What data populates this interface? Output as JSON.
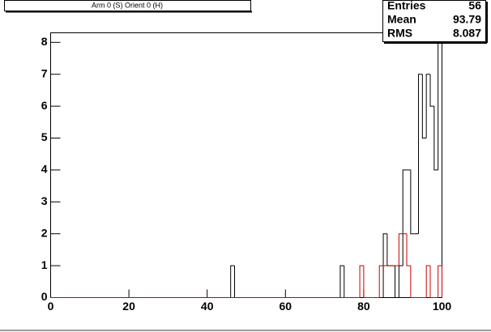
{
  "chart_data": {
    "type": "histogram",
    "title": "Arm 0 (S) Orient 0 (H)",
    "bins": [
      0,
      1,
      2,
      3,
      4,
      5,
      6,
      7,
      8,
      9,
      10,
      11,
      12,
      13,
      14,
      15,
      16,
      17,
      18,
      19,
      20,
      21,
      22,
      23,
      24,
      25,
      26,
      27,
      28,
      29,
      30,
      31,
      32,
      33,
      34,
      35,
      36,
      37,
      38,
      39,
      40,
      41,
      42,
      43,
      44,
      45,
      46,
      47,
      48,
      49,
      50,
      51,
      52,
      53,
      54,
      55,
      56,
      57,
      58,
      59,
      60,
      61,
      62,
      63,
      64,
      65,
      66,
      67,
      68,
      69,
      70,
      71,
      72,
      73,
      74,
      75,
      76,
      77,
      78,
      79,
      80,
      81,
      82,
      83,
      84,
      85,
      86,
      87,
      88,
      89,
      90,
      91,
      92,
      93,
      94,
      95,
      96,
      97,
      98,
      99,
      100
    ],
    "series": [
      {
        "color": "#000000",
        "values": [
          0,
          0,
          0,
          0,
          0,
          0,
          0,
          0,
          0,
          0,
          0,
          0,
          0,
          0,
          0,
          0,
          0,
          0,
          0,
          0,
          0,
          0,
          0,
          0,
          0,
          0,
          0,
          0,
          0,
          0,
          0,
          0,
          0,
          0,
          0,
          0,
          0,
          0,
          0,
          0,
          0,
          0,
          0,
          0,
          0,
          0,
          1,
          0,
          0,
          0,
          0,
          0,
          0,
          0,
          0,
          0,
          0,
          0,
          0,
          0,
          0,
          0,
          0,
          0,
          0,
          0,
          0,
          0,
          0,
          0,
          0,
          0,
          0,
          0,
          1,
          0,
          0,
          0,
          0,
          0,
          0,
          0,
          0,
          0,
          0,
          2,
          1,
          1,
          0,
          1,
          4,
          4,
          2,
          2,
          7,
          5,
          7,
          6,
          4,
          8
        ]
      },
      {
        "color": "#cc0000",
        "values": [
          0,
          0,
          0,
          0,
          0,
          0,
          0,
          0,
          0,
          0,
          0,
          0,
          0,
          0,
          0,
          0,
          0,
          0,
          0,
          0,
          0,
          0,
          0,
          0,
          0,
          0,
          0,
          0,
          0,
          0,
          0,
          0,
          0,
          0,
          0,
          0,
          0,
          0,
          0,
          0,
          0,
          0,
          0,
          0,
          0,
          0,
          0,
          0,
          0,
          0,
          0,
          0,
          0,
          0,
          0,
          0,
          0,
          0,
          0,
          0,
          0,
          0,
          0,
          0,
          0,
          0,
          0,
          0,
          0,
          0,
          0,
          0,
          0,
          0,
          0,
          0,
          0,
          0,
          0,
          1,
          0,
          0,
          0,
          0,
          1,
          1,
          1,
          1,
          1,
          2,
          2,
          1,
          0,
          0,
          0,
          0,
          1,
          0,
          0,
          1
        ]
      }
    ],
    "xlim": [
      0,
      100
    ],
    "xticks": [
      0,
      20,
      40,
      60,
      80,
      100
    ],
    "ylim": [
      0,
      8.3
    ],
    "yticks": [
      0,
      1,
      2,
      3,
      4,
      5,
      6,
      7,
      8
    ],
    "stats": [
      {
        "label": "Entries",
        "value": 56
      },
      {
        "label": "Mean",
        "value": 93.79
      },
      {
        "label": "RMS",
        "value": 8.087
      }
    ]
  }
}
